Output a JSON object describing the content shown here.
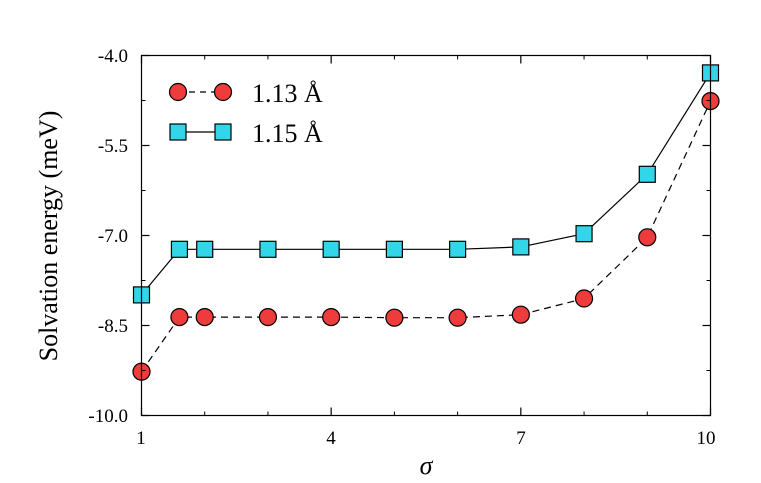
{
  "chart_data": {
    "type": "line",
    "xlabel": "σ",
    "ylabel": "Solvation energy (meV)",
    "xlim": [
      1,
      10
    ],
    "ylim": [
      -10.0,
      -4.0
    ],
    "xticks": [
      "1",
      "4",
      "7",
      "10"
    ],
    "yticks": [
      "-4.0",
      "-5.5",
      "-7.0",
      "-8.5",
      "-10.0"
    ],
    "grid": false,
    "legend_position": "top-left",
    "series": [
      {
        "name": "1.13 Å",
        "marker": "circle",
        "line": "dashed",
        "color": "#ee3b3b",
        "x": [
          1,
          1.6,
          2,
          3,
          4,
          5,
          6,
          7,
          8,
          9,
          10
        ],
        "y": [
          -9.27,
          -8.36,
          -8.36,
          -8.36,
          -8.36,
          -8.37,
          -8.37,
          -8.32,
          -8.05,
          -7.03,
          -4.76
        ]
      },
      {
        "name": "1.15 Å",
        "marker": "square",
        "line": "solid",
        "color": "#33d6e8",
        "x": [
          1,
          1.6,
          2,
          3,
          4,
          5,
          6,
          7,
          8,
          9,
          10
        ],
        "y": [
          -7.99,
          -7.23,
          -7.23,
          -7.23,
          -7.23,
          -7.23,
          -7.23,
          -7.19,
          -6.97,
          -5.98,
          -4.29
        ]
      }
    ]
  }
}
